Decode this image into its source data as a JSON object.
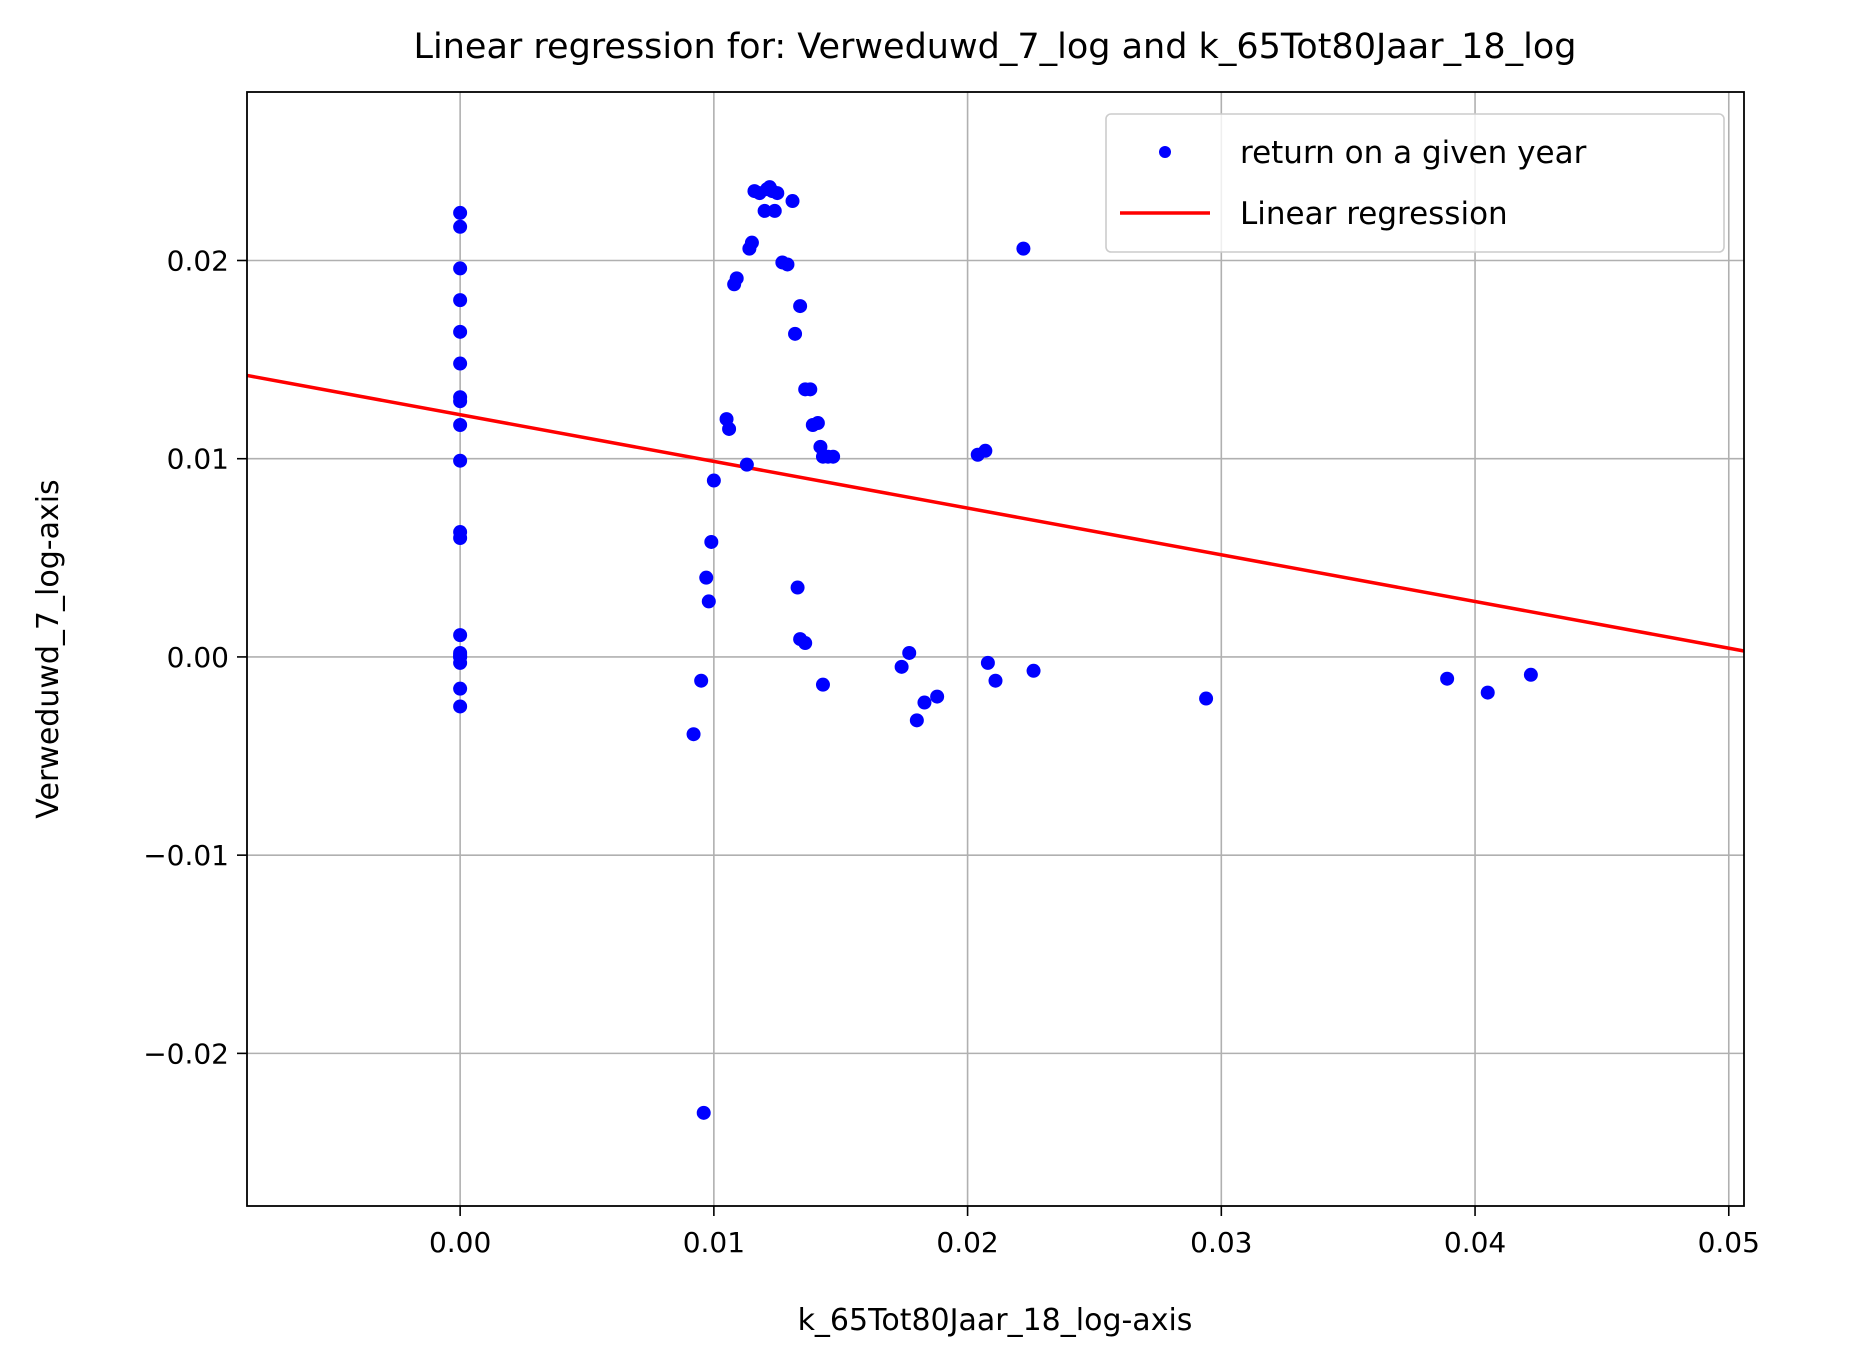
{
  "chart_data": {
    "type": "scatter",
    "title": "Linear regression for: Verweduwd_7_log and k_65Tot80Jaar_18_log",
    "xlabel": "k_65Tot80Jaar_18_log-axis",
    "ylabel": "Verweduwd_7_log-axis",
    "xlim": [
      -0.0084,
      0.0506
    ],
    "ylim": [
      -0.0277,
      0.0285
    ],
    "xticks": [
      0.0,
      0.01,
      0.02,
      0.03,
      0.04,
      0.05
    ],
    "xtick_labels": [
      "0.00",
      "0.01",
      "0.02",
      "0.03",
      "0.04",
      "0.05"
    ],
    "yticks": [
      -0.02,
      -0.01,
      0.0,
      0.01,
      0.02
    ],
    "ytick_labels": [
      "−0.02",
      "−0.01",
      "0.00",
      "0.01",
      "0.02"
    ],
    "grid": true,
    "legend_position": "top-right",
    "series": [
      {
        "name": "return on a given year",
        "kind": "scatter",
        "color": "#0000ff",
        "x": [
          0.0,
          0.0,
          0.0,
          0.0,
          0.0,
          0.0,
          0.0,
          0.0,
          0.0,
          0.0,
          0.0,
          0.0,
          0.0,
          0.0,
          0.0,
          0.0,
          0.0,
          0.0,
          0.0,
          0.0,
          0.0092,
          0.0095,
          0.0096,
          0.0097,
          0.0098,
          0.0099,
          0.01,
          0.0105,
          0.0106,
          0.0108,
          0.0109,
          0.0113,
          0.0114,
          0.0115,
          0.0116,
          0.0118,
          0.012,
          0.0121,
          0.0122,
          0.0123,
          0.0124,
          0.0125,
          0.0127,
          0.0129,
          0.0131,
          0.0132,
          0.0133,
          0.0134,
          0.0134,
          0.0136,
          0.0136,
          0.0138,
          0.0139,
          0.0141,
          0.0142,
          0.0143,
          0.0143,
          0.0145,
          0.0147,
          0.0174,
          0.0177,
          0.018,
          0.0183,
          0.0188,
          0.0204,
          0.0207,
          0.0208,
          0.0211,
          0.0222,
          0.0226,
          0.0294,
          0.0389,
          0.0405,
          0.0422
        ],
        "y": [
          0.0224,
          0.0217,
          0.0196,
          0.018,
          0.0164,
          0.0148,
          0.0131,
          0.0129,
          0.0117,
          0.0099,
          0.0063,
          0.006,
          0.0011,
          0.0002,
          0.0001,
          -0.0003,
          -0.0016,
          -0.0025,
          0.0,
          0.0,
          -0.0039,
          -0.0012,
          -0.023,
          0.004,
          0.0028,
          0.0058,
          0.0089,
          0.012,
          0.0115,
          0.0188,
          0.0191,
          0.0097,
          0.0206,
          0.0209,
          0.0235,
          0.0234,
          0.0225,
          0.0236,
          0.0237,
          0.0235,
          0.0225,
          0.0234,
          0.0199,
          0.0198,
          0.023,
          0.0163,
          0.0035,
          0.0177,
          0.0009,
          0.0135,
          0.0007,
          0.0135,
          0.0117,
          0.0118,
          0.0106,
          0.0101,
          -0.0014,
          0.0101,
          0.0101,
          -0.0005,
          0.0002,
          -0.0032,
          -0.0023,
          -0.002,
          0.0102,
          0.0104,
          -0.0003,
          -0.0012,
          0.0206,
          -0.0007,
          -0.0021,
          -0.0011,
          -0.0018,
          -0.0009
        ]
      },
      {
        "name": "Linear regression",
        "kind": "line",
        "color": "#ff0000",
        "x": [
          -0.0084,
          0.0506
        ],
        "y": [
          0.0142,
          0.0003
        ]
      }
    ]
  }
}
